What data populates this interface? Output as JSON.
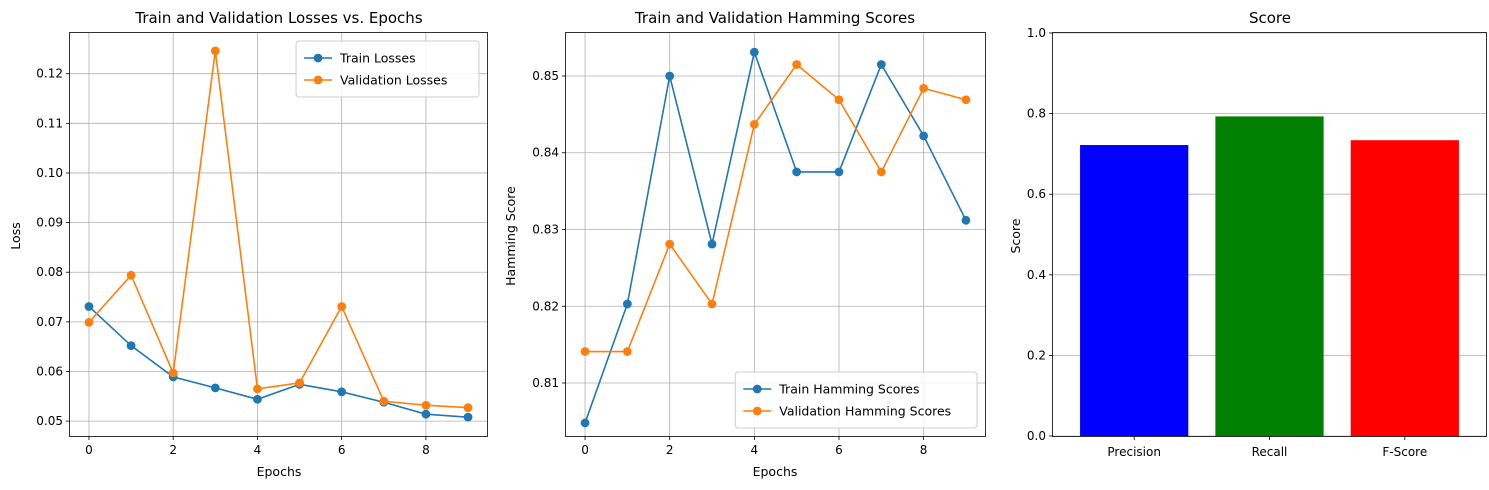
{
  "chart_data": [
    {
      "type": "line",
      "title": "Train and Validation Losses vs. Epochs",
      "xlabel": "Epochs",
      "ylabel": "Loss",
      "xlim": [
        -0.45,
        9.45
      ],
      "ylim": [
        0.047,
        0.1282
      ],
      "xticks": [
        0,
        2,
        4,
        6,
        8
      ],
      "xtick_labels": [
        "0",
        "2",
        "4",
        "6",
        "8"
      ],
      "yticks": [
        0.05,
        0.06,
        0.07,
        0.08,
        0.09,
        0.1,
        0.11,
        0.12
      ],
      "ytick_labels": [
        "0.05",
        "0.06",
        "0.07",
        "0.08",
        "0.09",
        "0.10",
        "0.11",
        "0.12"
      ],
      "grid": true,
      "legend_position": "top-right",
      "x": [
        0,
        1,
        2,
        3,
        4,
        5,
        6,
        7,
        8,
        9
      ],
      "series": [
        {
          "name": "Train Losses",
          "color": "#1f77b4",
          "values": [
            0.0731,
            0.0652,
            0.0589,
            0.0567,
            0.0544,
            0.0574,
            0.0559,
            0.0538,
            0.0514,
            0.0508
          ]
        },
        {
          "name": "Validation Losses",
          "color": "#ff7f0e",
          "values": [
            0.0699,
            0.0794,
            0.0597,
            0.1246,
            0.0565,
            0.0577,
            0.0731,
            0.054,
            0.0532,
            0.0527
          ]
        }
      ]
    },
    {
      "type": "line",
      "title": "Train and Validation Hamming Scores",
      "xlabel": "Epochs",
      "ylabel": "Hamming Score",
      "xlim": [
        -0.45,
        9.45
      ],
      "ylim": [
        0.8031,
        0.8556
      ],
      "xticks": [
        0,
        2,
        4,
        6,
        8
      ],
      "xtick_labels": [
        "0",
        "2",
        "4",
        "6",
        "8"
      ],
      "yticks": [
        0.81,
        0.82,
        0.83,
        0.84,
        0.85
      ],
      "ytick_labels": [
        "0.81",
        "0.82",
        "0.83",
        "0.84",
        "0.85"
      ],
      "grid": true,
      "legend_position": "bottom-right",
      "x": [
        0,
        1,
        2,
        3,
        4,
        5,
        6,
        7,
        8,
        9
      ],
      "series": [
        {
          "name": "Train Hamming Scores",
          "color": "#1f77b4",
          "values": [
            0.8048,
            0.8203,
            0.85,
            0.8281,
            0.8531,
            0.8375,
            0.8375,
            0.8515,
            0.8422,
            0.8312
          ]
        },
        {
          "name": "Validation Hamming Scores",
          "color": "#ff7f0e",
          "values": [
            0.8141,
            0.8141,
            0.8281,
            0.8203,
            0.8437,
            0.8515,
            0.8469,
            0.8375,
            0.8484,
            0.8469
          ]
        }
      ]
    },
    {
      "type": "bar",
      "title": "Score",
      "xlabel": "",
      "ylabel": "Score",
      "ylim": [
        0.0,
        1.0
      ],
      "yticks": [
        0.0,
        0.2,
        0.4,
        0.6,
        0.8,
        1.0
      ],
      "ytick_labels": [
        "0.0",
        "0.2",
        "0.4",
        "0.6",
        "0.8",
        "1.0"
      ],
      "grid": "y-axis",
      "categories": [
        "Precision",
        "Recall",
        "F-Score"
      ],
      "values": [
        0.722,
        0.793,
        0.734
      ],
      "colors": [
        "#0000ff",
        "#008000",
        "#ff0000"
      ]
    }
  ]
}
